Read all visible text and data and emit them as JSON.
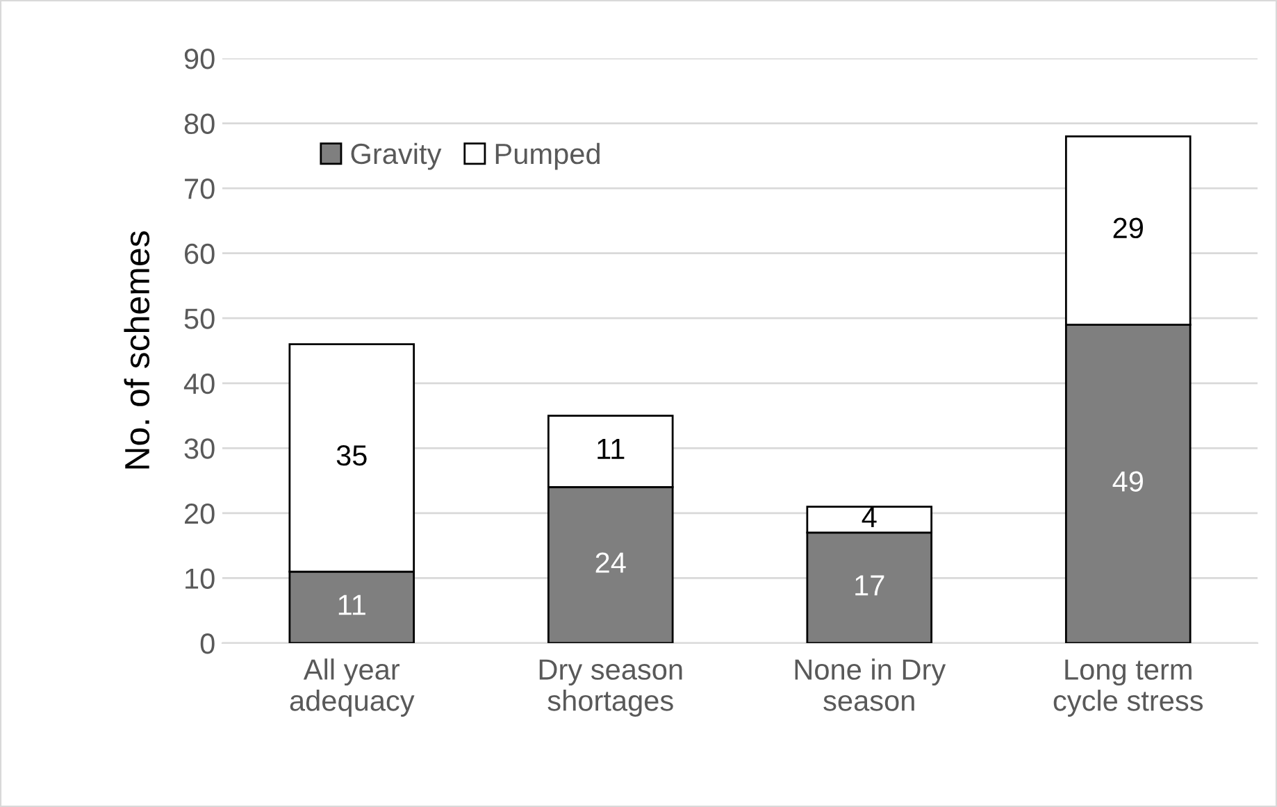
{
  "chart_data": {
    "type": "bar",
    "stacked": true,
    "ylabel": "No. of schemes",
    "categories": [
      "All year\nadequacy",
      "Dry season\nshortages",
      "None in Dry\nseason",
      "Long term\ncycle stress"
    ],
    "series": [
      {
        "name": "Gravity",
        "color": "#7f7f7f",
        "values": [
          11,
          24,
          17,
          49
        ]
      },
      {
        "name": "Pumped",
        "color": "#ffffff",
        "values": [
          35,
          11,
          4,
          29
        ]
      }
    ],
    "ylim": [
      0,
      90
    ],
    "yticks": [
      0,
      10,
      20,
      30,
      40,
      50,
      60,
      70,
      80,
      90
    ],
    "grid": "y",
    "legend": "top left",
    "data_labels": true
  }
}
